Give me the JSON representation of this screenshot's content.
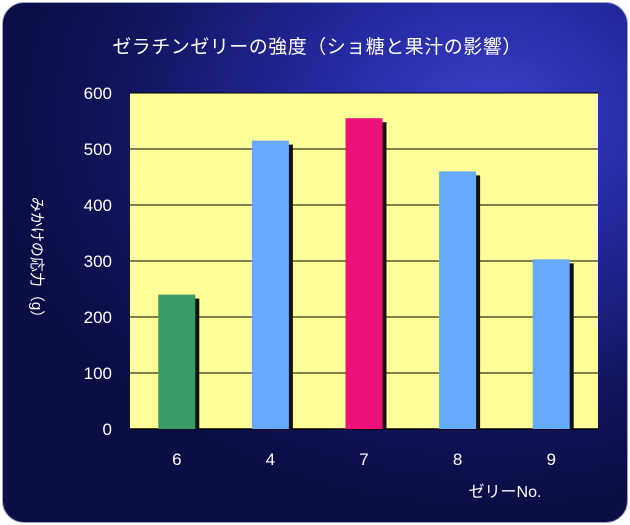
{
  "chart_data": {
    "type": "bar",
    "title": "ゼラチンゼリーの強度（ショ糖と果汁の影響）",
    "xlabel": "ゼリーNo.",
    "ylabel": "みかけの応力（g）",
    "categories": [
      "6",
      "4",
      "7",
      "8",
      "9"
    ],
    "values": [
      240,
      515,
      555,
      460,
      303
    ],
    "bar_colors": [
      "#3a9a68",
      "#66aaff",
      "#f0107a",
      "#66aaff",
      "#66aaff"
    ],
    "ylim": [
      0,
      600
    ],
    "yticks": [
      0,
      100,
      200,
      300,
      400,
      500,
      600
    ],
    "grid": true,
    "legend": "none"
  },
  "colors": {
    "plot_background": "#ffff99",
    "frame_background": "#1c1f80",
    "shadow": "#111111",
    "text": "#ffffff"
  }
}
